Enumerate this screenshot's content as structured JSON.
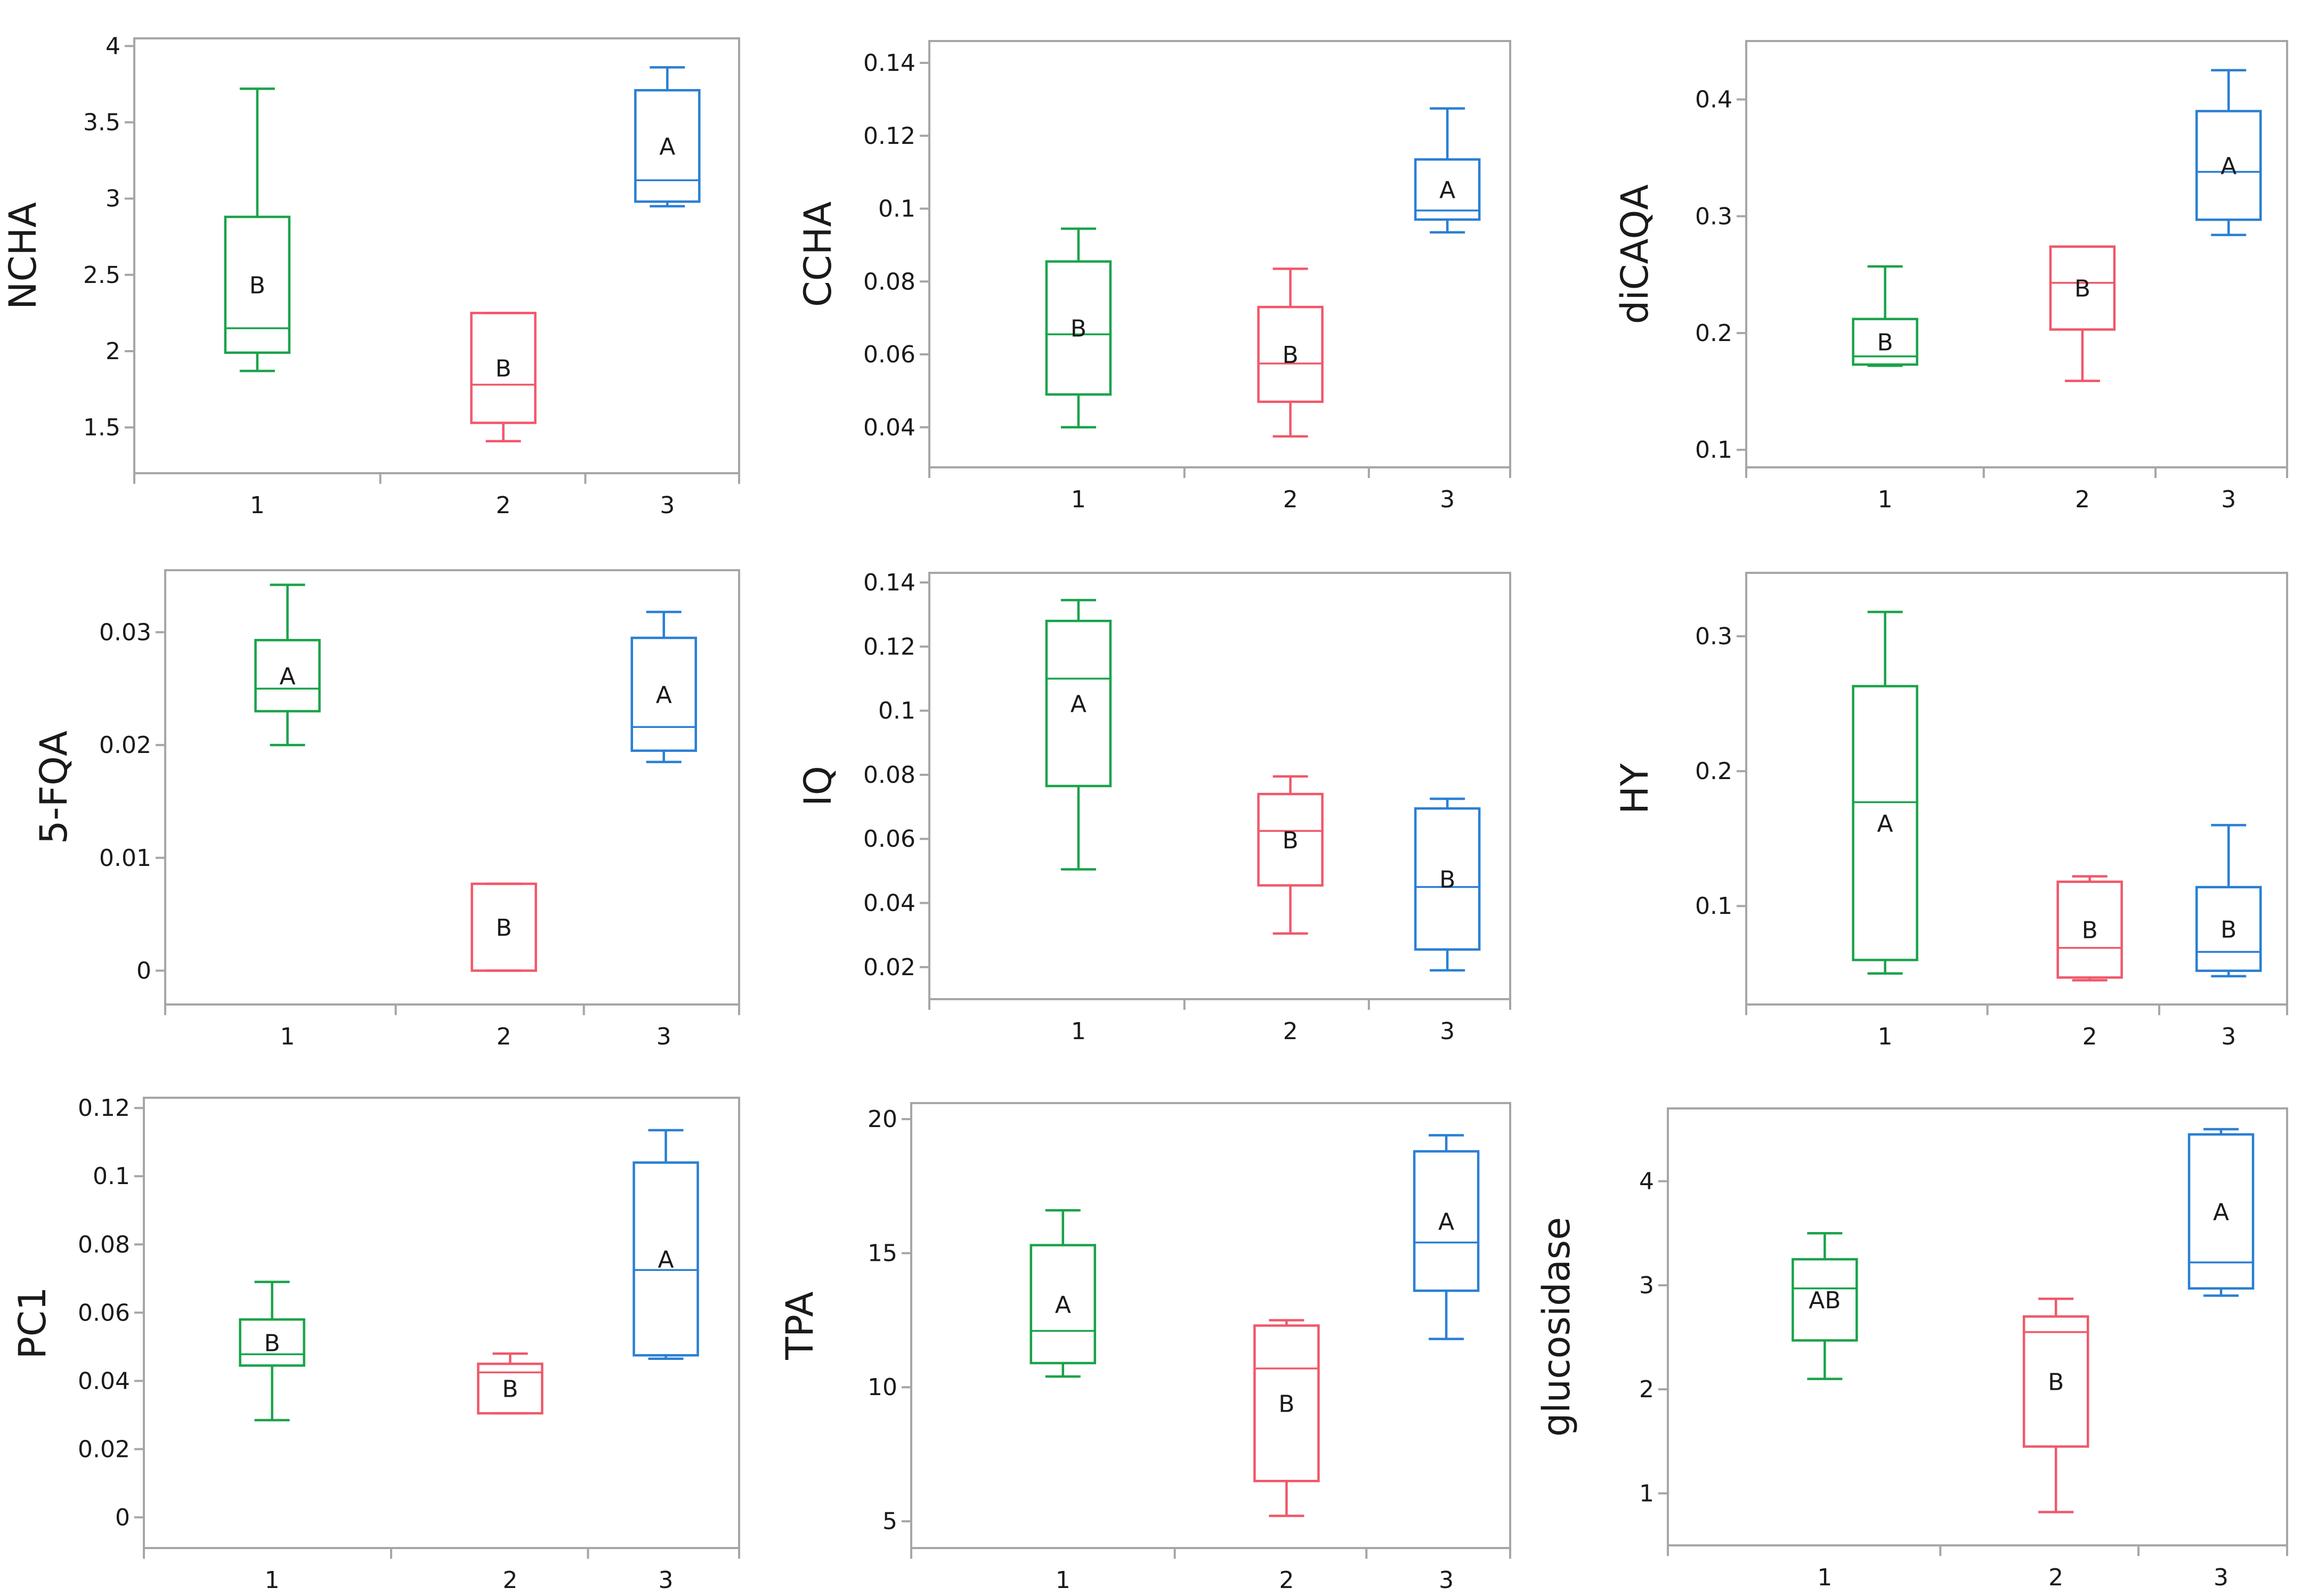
{
  "colors": {
    "group1": "#1aa34a",
    "group2": "#f0586a",
    "group3": "#2a7fd4",
    "frame": "#a6a6a6",
    "text": "#1a1a1a"
  },
  "chart_data": [
    {
      "type": "box",
      "ylabel": "NCHA",
      "categories": [
        "1",
        "2",
        "3"
      ],
      "xpos": [
        1,
        2.2,
        3.0
      ],
      "xlim": [
        0.4,
        3.35
      ],
      "ylim": [
        1.2,
        4.05
      ],
      "yticks": [
        1.5,
        2,
        2.5,
        3,
        3.5,
        4
      ],
      "ytick_labels": [
        "1.5",
        "2",
        "2.5",
        "3",
        "3.5",
        "4"
      ],
      "boxes": [
        {
          "min": 1.87,
          "q1": 1.99,
          "median": 2.15,
          "q3": 2.88,
          "max": 3.72,
          "label": "B"
        },
        {
          "min": 1.41,
          "q1": 1.53,
          "median": 1.78,
          "q3": 2.25,
          "max": 2.25,
          "label": "B"
        },
        {
          "min": 2.95,
          "q1": 2.98,
          "median": 3.12,
          "q3": 3.71,
          "max": 3.86,
          "label": "A"
        }
      ]
    },
    {
      "type": "box",
      "ylabel": "CCHA",
      "categories": [
        "1",
        "2",
        "3"
      ],
      "xpos": [
        1,
        2.35,
        3.35
      ],
      "xlim": [
        0.05,
        3.75
      ],
      "ylim": [
        0.029,
        0.146
      ],
      "yticks": [
        0.04,
        0.06,
        0.08,
        0.1,
        0.12,
        0.14
      ],
      "ytick_labels": [
        "0.04",
        "0.06",
        "0.08",
        "0.1",
        "0.12",
        "0.14"
      ],
      "boxes": [
        {
          "min": 0.04,
          "q1": 0.049,
          "median": 0.0655,
          "q3": 0.0855,
          "max": 0.0945,
          "label": "B"
        },
        {
          "min": 0.0375,
          "q1": 0.047,
          "median": 0.0575,
          "q3": 0.073,
          "max": 0.0835,
          "label": "B"
        },
        {
          "min": 0.0935,
          "q1": 0.097,
          "median": 0.0995,
          "q3": 0.1135,
          "max": 0.1275,
          "label": "A"
        }
      ]
    },
    {
      "type": "box",
      "ylabel": "diCAQA",
      "categories": [
        "1",
        "2",
        "3"
      ],
      "xpos": [
        1,
        2.35,
        3.35
      ],
      "xlim": [
        0.05,
        3.75
      ],
      "ylim": [
        0.085,
        0.45
      ],
      "yticks": [
        0.1,
        0.2,
        0.3,
        0.4
      ],
      "ytick_labels": [
        "0.1",
        "0.2",
        "0.3",
        "0.4"
      ],
      "boxes": [
        {
          "min": 0.172,
          "q1": 0.173,
          "median": 0.18,
          "q3": 0.212,
          "max": 0.257,
          "label": "B"
        },
        {
          "min": 0.159,
          "q1": 0.203,
          "median": 0.243,
          "q3": 0.274,
          "max": 0.274,
          "label": "B"
        },
        {
          "min": 0.284,
          "q1": 0.297,
          "median": 0.338,
          "q3": 0.39,
          "max": 0.425,
          "label": "A"
        }
      ]
    },
    {
      "type": "box",
      "ylabel": "5-FQA",
      "categories": [
        "1",
        "2",
        "3"
      ],
      "xpos": [
        1,
        2.15,
        3.0
      ],
      "xlim": [
        0.35,
        3.4
      ],
      "ylim": [
        -0.003,
        0.0355
      ],
      "yticks": [
        0,
        0.01,
        0.02,
        0.03
      ],
      "ytick_labels": [
        "0",
        "0.01",
        "0.02",
        "0.03"
      ],
      "boxes": [
        {
          "min": 0.02,
          "q1": 0.023,
          "median": 0.025,
          "q3": 0.0293,
          "max": 0.0342,
          "label": "A"
        },
        {
          "min": 0.0,
          "q1": 0.0,
          "median": 0.0,
          "q3": 0.0077,
          "max": 0.0077,
          "label": "B"
        },
        {
          "min": 0.0185,
          "q1": 0.0195,
          "median": 0.0216,
          "q3": 0.0295,
          "max": 0.0318,
          "label": "A"
        }
      ]
    },
    {
      "type": "box",
      "ylabel": "IQ",
      "categories": [
        "1",
        "2",
        "3"
      ],
      "xpos": [
        1,
        2.35,
        3.35
      ],
      "xlim": [
        0.05,
        3.75
      ],
      "ylim": [
        0.01,
        0.143
      ],
      "yticks": [
        0.02,
        0.04,
        0.06,
        0.08,
        0.1,
        0.12,
        0.14
      ],
      "ytick_labels": [
        "0.02",
        "0.04",
        "0.06",
        "0.08",
        "0.1",
        "0.12",
        "0.14"
      ],
      "boxes": [
        {
          "min": 0.0505,
          "q1": 0.0765,
          "median": 0.11,
          "q3": 0.128,
          "max": 0.1345,
          "label": "A"
        },
        {
          "min": 0.0305,
          "q1": 0.0455,
          "median": 0.0625,
          "q3": 0.074,
          "max": 0.0795,
          "label": "B"
        },
        {
          "min": 0.019,
          "q1": 0.0255,
          "median": 0.045,
          "q3": 0.0695,
          "max": 0.0725,
          "label": "B"
        }
      ]
    },
    {
      "type": "box",
      "ylabel": "HY",
      "categories": [
        "1",
        "2",
        "3"
      ],
      "xpos": [
        1,
        2.4,
        3.35
      ],
      "xlim": [
        0.05,
        3.75
      ],
      "ylim": [
        0.027,
        0.347
      ],
      "yticks": [
        0.1,
        0.2,
        0.3
      ],
      "ytick_labels": [
        "0.1",
        "0.2",
        "0.3"
      ],
      "boxes": [
        {
          "min": 0.05,
          "q1": 0.06,
          "median": 0.177,
          "q3": 0.263,
          "max": 0.318,
          "label": "A"
        },
        {
          "min": 0.045,
          "q1": 0.047,
          "median": 0.069,
          "q3": 0.118,
          "max": 0.122,
          "label": "B"
        },
        {
          "min": 0.048,
          "q1": 0.052,
          "median": 0.066,
          "q3": 0.114,
          "max": 0.16,
          "label": "B"
        }
      ]
    },
    {
      "type": "box",
      "ylabel": "PC1",
      "categories": [
        "1",
        "2",
        "3"
      ],
      "xpos": [
        1,
        2.3,
        3.15
      ],
      "xlim": [
        0.3,
        3.55
      ],
      "ylim": [
        -0.009,
        0.123
      ],
      "yticks": [
        0,
        0.02,
        0.04,
        0.06,
        0.08,
        0.1,
        0.12
      ],
      "ytick_labels": [
        "0",
        "0.02",
        "0.04",
        "0.06",
        "0.08",
        "0.1",
        "0.12"
      ],
      "boxes": [
        {
          "min": 0.0285,
          "q1": 0.0445,
          "median": 0.0478,
          "q3": 0.058,
          "max": 0.069,
          "label": "B"
        },
        {
          "min": 0.0305,
          "q1": 0.0305,
          "median": 0.0425,
          "q3": 0.045,
          "max": 0.048,
          "label": "B"
        },
        {
          "min": 0.0465,
          "q1": 0.0475,
          "median": 0.0725,
          "q3": 0.104,
          "max": 0.1135,
          "label": "A"
        }
      ]
    },
    {
      "type": "box",
      "ylabel": "TPA",
      "categories": [
        "1",
        "2",
        "3"
      ],
      "xpos": [
        1,
        2.4,
        3.4
      ],
      "xlim": [
        0.05,
        3.8
      ],
      "ylim": [
        4.0,
        20.6
      ],
      "yticks": [
        5,
        10,
        15,
        20
      ],
      "ytick_labels": [
        "5",
        "10",
        "15",
        "20"
      ],
      "boxes": [
        {
          "min": 10.4,
          "q1": 10.9,
          "median": 12.1,
          "q3": 15.3,
          "max": 16.6,
          "label": "A"
        },
        {
          "min": 5.2,
          "q1": 6.5,
          "median": 10.7,
          "q3": 12.3,
          "max": 12.5,
          "label": "B"
        },
        {
          "min": 11.8,
          "q1": 13.6,
          "median": 15.4,
          "q3": 18.8,
          "max": 19.4,
          "label": "A"
        }
      ]
    },
    {
      "type": "box",
      "ylabel": "glucosidase",
      "categories": [
        "1",
        "2",
        "3"
      ],
      "xpos": [
        1,
        2.4,
        3.4
      ],
      "xlim": [
        0.05,
        3.8
      ],
      "ylim": [
        0.5,
        4.7
      ],
      "yticks": [
        1,
        2,
        3,
        4
      ],
      "ytick_labels": [
        "1",
        "2",
        "3",
        "4"
      ],
      "boxes": [
        {
          "min": 2.1,
          "q1": 2.47,
          "median": 2.97,
          "q3": 3.25,
          "max": 3.5,
          "label": "AB"
        },
        {
          "min": 0.82,
          "q1": 1.45,
          "median": 2.55,
          "q3": 2.7,
          "max": 2.87,
          "label": "B"
        },
        {
          "min": 2.9,
          "q1": 2.97,
          "median": 3.22,
          "q3": 4.45,
          "max": 4.5,
          "label": "A"
        }
      ]
    }
  ]
}
